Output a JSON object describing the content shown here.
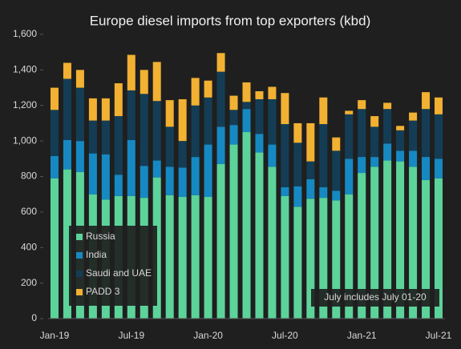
{
  "chart_data": {
    "type": "stacked_bar",
    "title": "Europe diesel imports from top exporters (kbd)",
    "categories": [
      "Jan-19",
      null,
      null,
      null,
      null,
      null,
      "Jul-19",
      null,
      null,
      null,
      null,
      null,
      "Jan-20",
      null,
      null,
      null,
      null,
      null,
      "Jul-20",
      null,
      null,
      null,
      null,
      null,
      "Jan-21",
      null,
      null,
      null,
      null,
      null,
      "Jul-21"
    ],
    "series": [
      {
        "name": "Russia",
        "color": "#5cd39a",
        "values": [
          790,
          840,
          825,
          700,
          670,
          690,
          690,
          680,
          795,
          695,
          685,
          695,
          685,
          870,
          980,
          1050,
          935,
          855,
          690,
          630,
          675,
          680,
          665,
          700,
          820,
          855,
          890,
          885,
          855,
          780,
          790
        ]
      },
      {
        "name": "India",
        "color": "#1689c2",
        "values": [
          125,
          165,
          175,
          230,
          255,
          120,
          315,
          180,
          95,
          160,
          165,
          215,
          295,
          210,
          110,
          130,
          105,
          125,
          50,
          115,
          110,
          60,
          55,
          200,
          90,
          55,
          95,
          60,
          90,
          130,
          110
        ]
      },
      {
        "name": "Saudi and UAE",
        "color": "#143d55",
        "values": [
          260,
          345,
          300,
          185,
          190,
          330,
          280,
          405,
          335,
          225,
          150,
          290,
          265,
          310,
          85,
          40,
          195,
          255,
          355,
          245,
          100,
          355,
          225,
          250,
          270,
          170,
          195,
          115,
          170,
          270,
          250
        ]
      },
      {
        "name": "PADD 3",
        "color": "#f2b132",
        "values": [
          125,
          90,
          100,
          125,
          125,
          185,
          200,
          135,
          220,
          150,
          235,
          155,
          95,
          105,
          80,
          110,
          45,
          70,
          175,
          110,
          215,
          150,
          75,
          20,
          50,
          60,
          35,
          25,
          45,
          95,
          95
        ]
      }
    ],
    "ylim": [
      0,
      1600
    ],
    "yticks": [
      0,
      200,
      400,
      600,
      800,
      {
        "value": 1000,
        "label": "1,000"
      },
      {
        "value": 1200,
        "label": "1,200"
      },
      {
        "value": 1400,
        "label": "1,400"
      },
      {
        "value": 1600,
        "label": "1,600"
      }
    ],
    "annotation": "July includes July 01-20",
    "legend": "lower left"
  }
}
